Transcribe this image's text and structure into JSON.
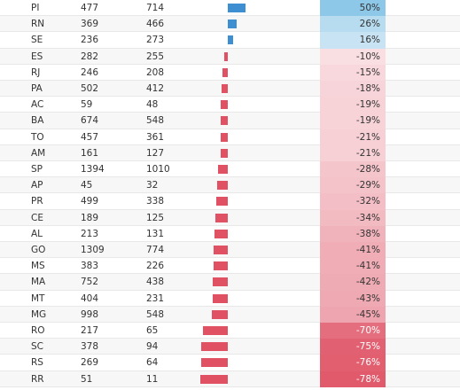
{
  "chart_data": {
    "type": "table",
    "columns": [
      "",
      "",
      "",
      "",
      ""
    ],
    "rows": [
      {
        "state": "PI",
        "a": 477,
        "b": 714,
        "change": 50,
        "label": "50%"
      },
      {
        "state": "RN",
        "a": 369,
        "b": 466,
        "change": 26,
        "label": "26%"
      },
      {
        "state": "SE",
        "a": 236,
        "b": 273,
        "change": 16,
        "label": "16%"
      },
      {
        "state": "ES",
        "a": 282,
        "b": 255,
        "change": -10,
        "label": "-10%"
      },
      {
        "state": "RJ",
        "a": 246,
        "b": 208,
        "change": -15,
        "label": "-15%"
      },
      {
        "state": "PA",
        "a": 502,
        "b": 412,
        "change": -18,
        "label": "-18%"
      },
      {
        "state": "AC",
        "a": 59,
        "b": 48,
        "change": -19,
        "label": "-19%"
      },
      {
        "state": "BA",
        "a": 674,
        "b": 548,
        "change": -19,
        "label": "-19%"
      },
      {
        "state": "TO",
        "a": 457,
        "b": 361,
        "change": -21,
        "label": "-21%"
      },
      {
        "state": "AM",
        "a": 161,
        "b": 127,
        "change": -21,
        "label": "-21%"
      },
      {
        "state": "SP",
        "a": 1394,
        "b": 1010,
        "change": -28,
        "label": "-28%"
      },
      {
        "state": "AP",
        "a": 45,
        "b": 32,
        "change": -29,
        "label": "-29%"
      },
      {
        "state": "PR",
        "a": 499,
        "b": 338,
        "change": -32,
        "label": "-32%"
      },
      {
        "state": "CE",
        "a": 189,
        "b": 125,
        "change": -34,
        "label": "-34%"
      },
      {
        "state": "AL",
        "a": 213,
        "b": 131,
        "change": -38,
        "label": "-38%"
      },
      {
        "state": "GO",
        "a": 1309,
        "b": 774,
        "change": -41,
        "label": "-41%"
      },
      {
        "state": "MS",
        "a": 383,
        "b": 226,
        "change": -41,
        "label": "-41%"
      },
      {
        "state": "MA",
        "a": 752,
        "b": 438,
        "change": -42,
        "label": "-42%"
      },
      {
        "state": "MT",
        "a": 404,
        "b": 231,
        "change": -43,
        "label": "-43%"
      },
      {
        "state": "MG",
        "a": 998,
        "b": 548,
        "change": -45,
        "label": "-45%"
      },
      {
        "state": "RO",
        "a": 217,
        "b": 65,
        "change": -70,
        "label": "-70%"
      },
      {
        "state": "SC",
        "a": 378,
        "b": 94,
        "change": -75,
        "label": "-75%"
      },
      {
        "state": "RS",
        "a": 269,
        "b": 64,
        "change": -76,
        "label": "-76%"
      },
      {
        "state": "RR",
        "a": 51,
        "b": 11,
        "change": -78,
        "label": "-78%"
      }
    ],
    "colors": {
      "positive_bar": "#3d8fd1",
      "negative_bar": "#e05263",
      "positive_fill": "#8ec8e8",
      "negative_fill": "#e05a6b"
    },
    "grid": true
  }
}
